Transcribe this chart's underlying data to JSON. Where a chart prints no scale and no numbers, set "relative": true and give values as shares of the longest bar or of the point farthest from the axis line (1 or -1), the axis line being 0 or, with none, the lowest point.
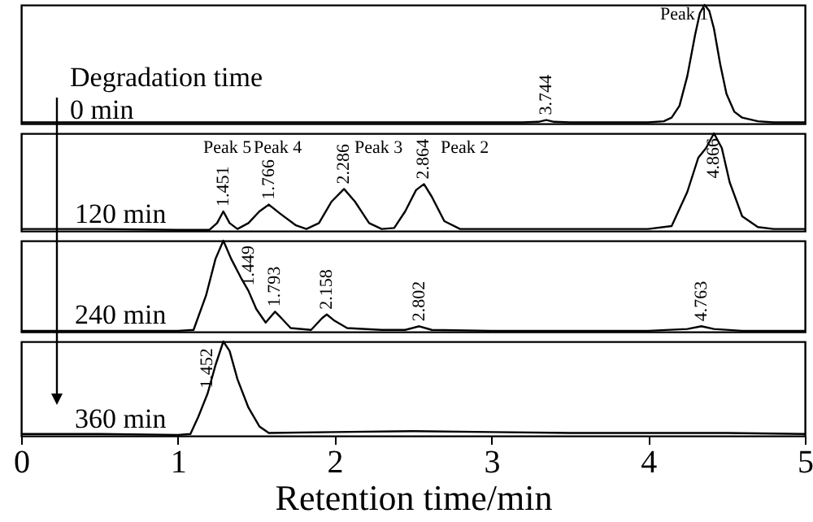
{
  "chart_data": [
    {
      "type": "line",
      "relative": true,
      "xlim": [
        0,
        5
      ],
      "tick_labels": false,
      "x": [
        0,
        0.5,
        1,
        1.5,
        2,
        2.5,
        3,
        3.2,
        3.3,
        3.35,
        3.4,
        3.5,
        3.8,
        4.0,
        4.1,
        4.15,
        4.2,
        4.25,
        4.3,
        4.33,
        4.36,
        4.39,
        4.42,
        4.46,
        4.5,
        4.55,
        4.6,
        4.7,
        4.8,
        5.0
      ],
      "series": [
        {
          "color": "#000000",
          "values": [
            0.01,
            0.01,
            0.01,
            0.01,
            0.01,
            0.01,
            0.01,
            0.01,
            0.015,
            0.03,
            0.015,
            0.01,
            0.01,
            0.01,
            0.02,
            0.05,
            0.15,
            0.4,
            0.75,
            0.93,
            1.0,
            0.95,
            0.8,
            0.5,
            0.25,
            0.1,
            0.05,
            0.02,
            0.01,
            0.01
          ]
        }
      ],
      "annotations": [
        "Degradation time",
        "0 min",
        "Peak 1",
        {
          "text": "3.744",
          "x": 3.35,
          "y": 0.03
        }
      ]
    },
    {
      "type": "line",
      "relative": true,
      "xlim": [
        0,
        5
      ],
      "tick_labels": false,
      "x": [
        0,
        0.5,
        1.0,
        1.2,
        1.25,
        1.29,
        1.33,
        1.38,
        1.45,
        1.52,
        1.58,
        1.65,
        1.75,
        1.82,
        1.9,
        1.98,
        2.06,
        2.13,
        2.22,
        2.3,
        2.38,
        2.45,
        2.52,
        2.57,
        2.62,
        2.7,
        2.8,
        3.0,
        3.5,
        4.0,
        4.15,
        4.25,
        4.32,
        4.37,
        4.42,
        4.47,
        4.52,
        4.6,
        4.7,
        4.8,
        5.0
      ],
      "series": [
        {
          "color": "#000000",
          "values": [
            0.02,
            0.02,
            0.01,
            0.01,
            0.08,
            0.2,
            0.08,
            0.02,
            0.08,
            0.2,
            0.27,
            0.18,
            0.06,
            0.02,
            0.08,
            0.3,
            0.43,
            0.3,
            0.08,
            0.02,
            0.03,
            0.2,
            0.42,
            0.48,
            0.35,
            0.1,
            0.02,
            0.02,
            0.02,
            0.02,
            0.05,
            0.4,
            0.75,
            0.85,
            1.0,
            0.85,
            0.5,
            0.15,
            0.04,
            0.02,
            0.02
          ]
        }
      ],
      "annotations": [
        "120 min",
        "Peak 5",
        "Peak 4",
        "Peak 3",
        "Peak 2",
        {
          "text": "1.451",
          "x": 1.29,
          "y": 0.2
        },
        {
          "text": "1.766",
          "x": 1.58,
          "y": 0.27
        },
        {
          "text": "2.286",
          "x": 2.06,
          "y": 0.43
        },
        {
          "text": "2.864",
          "x": 2.57,
          "y": 0.48
        },
        {
          "text": "4.866",
          "x": 4.42,
          "y": 1.0
        }
      ]
    },
    {
      "type": "line",
      "relative": true,
      "xlim": [
        0,
        5
      ],
      "tick_labels": false,
      "x": [
        0,
        1.0,
        1.1,
        1.18,
        1.24,
        1.29,
        1.34,
        1.4,
        1.45,
        1.5,
        1.56,
        1.6,
        1.62,
        1.66,
        1.72,
        1.85,
        1.92,
        1.95,
        2.0,
        2.08,
        2.3,
        2.45,
        2.54,
        2.62,
        3.0,
        4.0,
        4.25,
        4.34,
        4.42,
        4.6,
        5.0
      ],
      "series": [
        {
          "color": "#000000",
          "values": [
            0.01,
            0.01,
            0.02,
            0.4,
            0.8,
            1.0,
            0.8,
            0.6,
            0.45,
            0.25,
            0.1,
            0.18,
            0.22,
            0.15,
            0.04,
            0.02,
            0.15,
            0.19,
            0.12,
            0.04,
            0.02,
            0.02,
            0.06,
            0.02,
            0.01,
            0.01,
            0.03,
            0.06,
            0.03,
            0.01,
            0.01
          ]
        }
      ],
      "annotations": [
        "240 min",
        {
          "text": "1.449",
          "x": 1.45,
          "y": 0.45
        },
        {
          "text": "1.793",
          "x": 1.62,
          "y": 0.22
        },
        {
          "text": "2.158",
          "x": 1.95,
          "y": 0.19
        },
        {
          "text": "2.802",
          "x": 2.54,
          "y": 0.06
        },
        {
          "text": "4.763",
          "x": 4.34,
          "y": 0.06
        }
      ]
    },
    {
      "type": "line",
      "relative": true,
      "xlim": [
        0,
        5
      ],
      "xticks": [
        0,
        1,
        2,
        3,
        4,
        5
      ],
      "tick_labels": "x",
      "xlabel": "Retention time/min",
      "x": [
        0,
        0.5,
        1.0,
        1.08,
        1.13,
        1.19,
        1.24,
        1.29,
        1.33,
        1.38,
        1.45,
        1.52,
        1.58,
        2.0,
        2.5,
        3.0,
        3.5,
        4.0,
        4.5,
        5.0
      ],
      "series": [
        {
          "color": "#000000",
          "values": [
            0.02,
            0.02,
            0.01,
            0.02,
            0.2,
            0.45,
            0.75,
            1.0,
            0.9,
            0.6,
            0.3,
            0.1,
            0.03,
            0.04,
            0.05,
            0.04,
            0.03,
            0.03,
            0.03,
            0.02
          ]
        }
      ],
      "annotations": [
        "360 min",
        {
          "text": "1.452",
          "x": 1.19,
          "y": 0.45
        }
      ]
    }
  ]
}
